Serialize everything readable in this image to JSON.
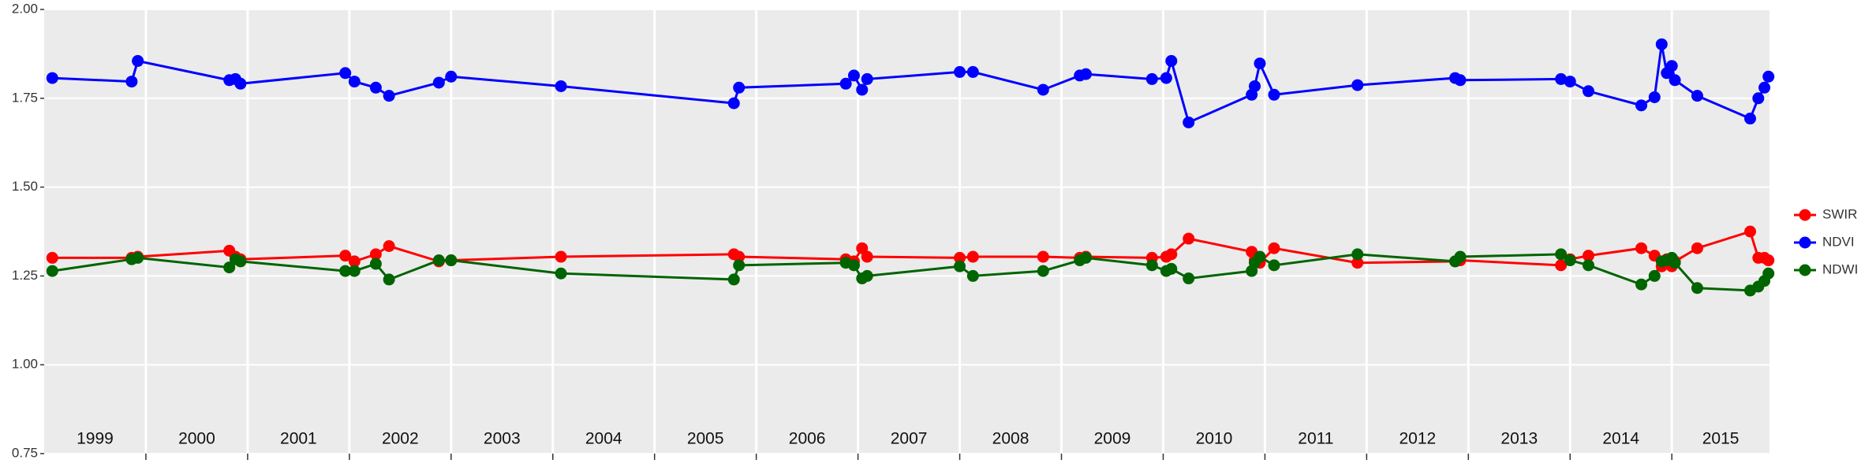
{
  "chart_data": {
    "type": "line",
    "x": [
      1999.08,
      1999.86,
      1999.92,
      2000.82,
      2000.88,
      2000.93,
      2001.96,
      2002.05,
      2002.26,
      2002.39,
      2002.88,
      2003.0,
      2004.08,
      2005.78,
      2005.83,
      2006.88,
      2006.96,
      2007.04,
      2007.09,
      2008.0,
      2008.13,
      2008.82,
      2009.18,
      2009.24,
      2009.89,
      2010.03,
      2010.08,
      2010.25,
      2010.87,
      2010.9,
      2010.95,
      2011.09,
      2011.91,
      2012.87,
      2012.92,
      2013.91,
      2014.0,
      2014.18,
      2014.7,
      2014.83,
      2014.9,
      2014.95,
      2015.0,
      2015.03,
      2015.25,
      2015.77,
      2015.85,
      2015.91,
      2015.95
    ],
    "series": [
      {
        "name": "SWIR",
        "color": "#ff0000",
        "values": [
          1.301,
          1.301,
          1.304,
          1.321,
          1.304,
          1.297,
          1.307,
          1.291,
          1.311,
          1.334,
          1.291,
          1.294,
          1.304,
          1.311,
          1.304,
          1.297,
          1.291,
          1.328,
          1.304,
          1.301,
          1.304,
          1.304,
          1.301,
          1.304,
          1.301,
          1.304,
          1.311,
          1.355,
          1.318,
          1.294,
          1.287,
          1.328,
          1.287,
          1.291,
          1.294,
          1.28,
          1.297,
          1.307,
          1.328,
          1.307,
          1.277,
          1.297,
          1.277,
          1.291,
          1.328,
          1.375,
          1.301,
          1.301,
          1.294
        ]
      },
      {
        "name": "NDVI",
        "color": "#0000ff",
        "values": [
          1.807,
          1.797,
          1.855,
          1.801,
          1.804,
          1.791,
          1.821,
          1.797,
          1.78,
          1.757,
          1.794,
          1.811,
          1.784,
          1.736,
          1.78,
          1.791,
          1.814,
          1.774,
          1.804,
          1.824,
          1.824,
          1.774,
          1.814,
          1.818,
          1.804,
          1.807,
          1.855,
          1.682,
          1.76,
          1.784,
          1.848,
          1.76,
          1.787,
          1.807,
          1.801,
          1.804,
          1.797,
          1.77,
          1.73,
          1.753,
          1.902,
          1.821,
          1.841,
          1.801,
          1.757,
          1.693,
          1.75,
          1.78,
          1.811
        ]
      },
      {
        "name": "NDWI",
        "color": "#006400",
        "values": [
          1.264,
          1.297,
          1.301,
          1.274,
          1.297,
          1.291,
          1.264,
          1.264,
          1.284,
          1.24,
          1.294,
          1.294,
          1.257,
          1.24,
          1.28,
          1.287,
          1.28,
          1.243,
          1.25,
          1.277,
          1.25,
          1.264,
          1.294,
          1.301,
          1.28,
          1.264,
          1.27,
          1.243,
          1.264,
          1.287,
          1.304,
          1.28,
          1.311,
          1.291,
          1.304,
          1.311,
          1.294,
          1.28,
          1.226,
          1.25,
          1.291,
          1.294,
          1.301,
          1.287,
          1.216,
          1.209,
          1.22,
          1.236,
          1.257
        ]
      }
    ],
    "xlim": [
      1999.0,
      2015.96
    ],
    "xticks": [
      2000,
      2001,
      2002,
      2003,
      2004,
      2005,
      2006,
      2007,
      2008,
      2009,
      2010,
      2011,
      2012,
      2013,
      2014,
      2015
    ],
    "year_labels": [
      "1999",
      "2000",
      "2001",
      "2002",
      "2003",
      "2004",
      "2005",
      "2006",
      "2007",
      "2008",
      "2009",
      "2010",
      "2011",
      "2012",
      "2013",
      "2014",
      "2015"
    ],
    "ylim": [
      0.75,
      2.0
    ],
    "yticks": [
      0.75,
      {
        "value": 1,
        "label": "1.00"
      },
      1.25,
      {
        "value": 1.5,
        "label": "1.50"
      },
      1.75,
      {
        "value": 2,
        "label": "2.00"
      }
    ],
    "grid": true,
    "legend": "right"
  }
}
